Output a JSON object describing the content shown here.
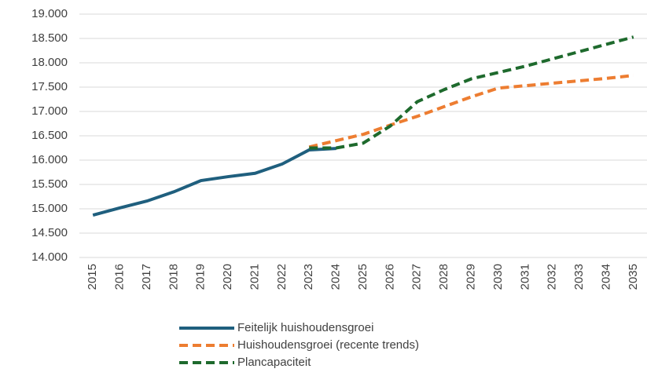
{
  "chart_data": {
    "type": "line",
    "categories": [
      "2015",
      "2016",
      "2017",
      "2018",
      "2019",
      "2020",
      "2021",
      "2022",
      "2023",
      "2024",
      "2025",
      "2026",
      "2027",
      "2028",
      "2029",
      "2030",
      "2031",
      "2032",
      "2033",
      "2034",
      "2035"
    ],
    "series": [
      {
        "name": "Feitelijk huishoudensgroei",
        "color": "#1f5f7e",
        "line_style": "solid",
        "values": [
          14870,
          15020,
          15160,
          15350,
          15580,
          15660,
          15730,
          15920,
          16210,
          16240,
          null,
          null,
          null,
          null,
          null,
          null,
          null,
          null,
          null,
          null,
          null
        ]
      },
      {
        "name": "Huishoudensgroei (recente trends)",
        "color": "#ed7d31",
        "line_style": "dashed",
        "values": [
          null,
          null,
          null,
          null,
          null,
          null,
          null,
          null,
          16270,
          16400,
          16530,
          16720,
          16900,
          17100,
          17300,
          17480,
          17530,
          17580,
          17630,
          17680,
          17740
        ]
      },
      {
        "name": "Plancapaciteit",
        "color": "#1e6a2d",
        "line_style": "dashed",
        "values": [
          null,
          null,
          null,
          null,
          null,
          null,
          null,
          null,
          16250,
          16250,
          16350,
          16700,
          17200,
          17450,
          17670,
          17800,
          17930,
          18080,
          18230,
          18380,
          18530
        ]
      }
    ],
    "ylim": [
      14000,
      19000
    ],
    "yticks": [
      {
        "value": 14000,
        "label": "14.000"
      },
      {
        "value": 14500,
        "label": "14.500"
      },
      {
        "value": 15000,
        "label": "15.000"
      },
      {
        "value": 15500,
        "label": "15.500"
      },
      {
        "value": 16000,
        "label": "16.000"
      },
      {
        "value": 16500,
        "label": "16.500"
      },
      {
        "value": 17000,
        "label": "17.000"
      },
      {
        "value": 17500,
        "label": "17.500"
      },
      {
        "value": 18000,
        "label": "18.000"
      },
      {
        "value": 18500,
        "label": "18.500"
      },
      {
        "value": 19000,
        "label": "19.000"
      }
    ],
    "grid": true,
    "legend": "bottom"
  }
}
